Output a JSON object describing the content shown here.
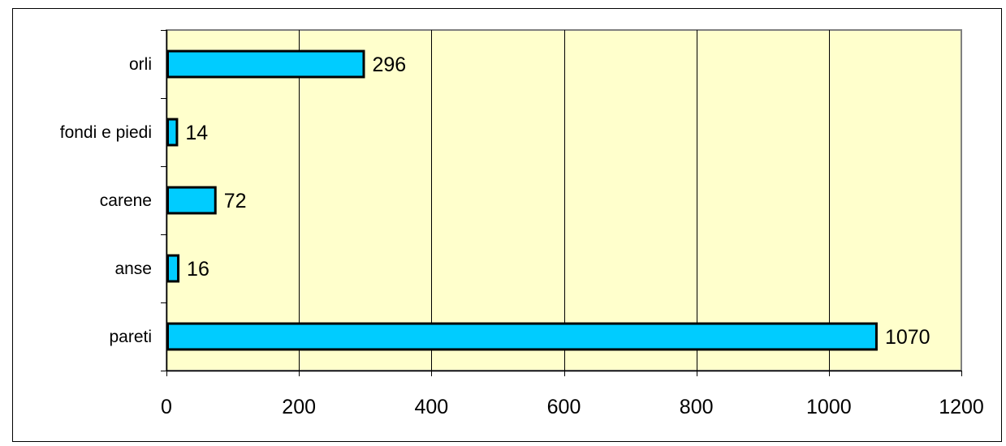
{
  "chart_data": {
    "type": "bar",
    "orientation": "horizontal",
    "categories": [
      "orli",
      "fondi e piedi",
      "carene",
      "anse",
      "pareti"
    ],
    "values": [
      296,
      14,
      72,
      16,
      1070
    ],
    "data_labels": [
      "296",
      "14",
      "72",
      "16",
      "1070"
    ],
    "title": "",
    "xlabel": "",
    "ylabel": "",
    "xlim": [
      0,
      1200
    ],
    "x_ticks": [
      0,
      200,
      400,
      600,
      800,
      1000,
      1200
    ],
    "x_tick_labels": [
      "0",
      "200",
      "400",
      "600",
      "800",
      "1000",
      "1200"
    ],
    "grid": "vertical",
    "legend": "none",
    "colors": {
      "bar_fill": "#00CCFF",
      "bar_stroke": "#000000",
      "plot_background": "#FFFFCC",
      "plot_border": "#808080",
      "gridline": "#000000"
    }
  }
}
